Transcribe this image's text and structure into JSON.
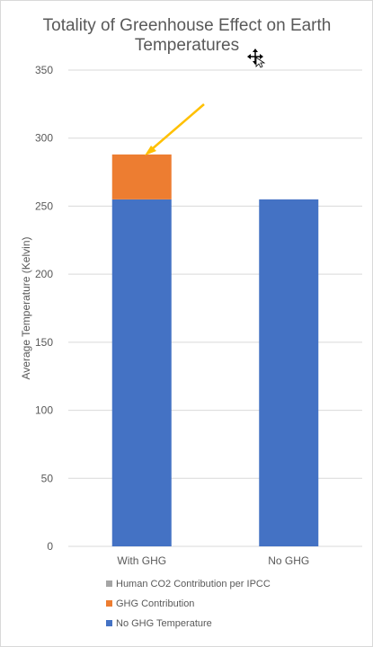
{
  "chart_data": {
    "type": "bar",
    "stacked": true,
    "title_lines": [
      "Totality of Greenhouse Effect on Earth",
      "Temperatures"
    ],
    "xlabel": "",
    "ylabel": "Average Temperature (Kelvin)",
    "ylim": [
      0,
      350
    ],
    "yticks": [
      0,
      50,
      100,
      150,
      200,
      250,
      300,
      350
    ],
    "grid": true,
    "legend_position": "bottom",
    "categories": [
      "With GHG",
      "No GHG"
    ],
    "series": [
      {
        "name": "No GHG Temperature",
        "color": "#4472c4",
        "values": [
          255,
          255
        ]
      },
      {
        "name": "GHG Contribution",
        "color": "#ed7d31",
        "values": [
          33,
          0
        ]
      },
      {
        "name": "Human CO2 Contribution per IPCC",
        "color": "#a5a5a5",
        "values": [
          0,
          0
        ]
      }
    ],
    "annotations": [
      {
        "type": "arrow",
        "color": "#ffc000",
        "points_to": "With GHG stack top"
      }
    ]
  },
  "cursor_icon": "move-cursor-icon"
}
